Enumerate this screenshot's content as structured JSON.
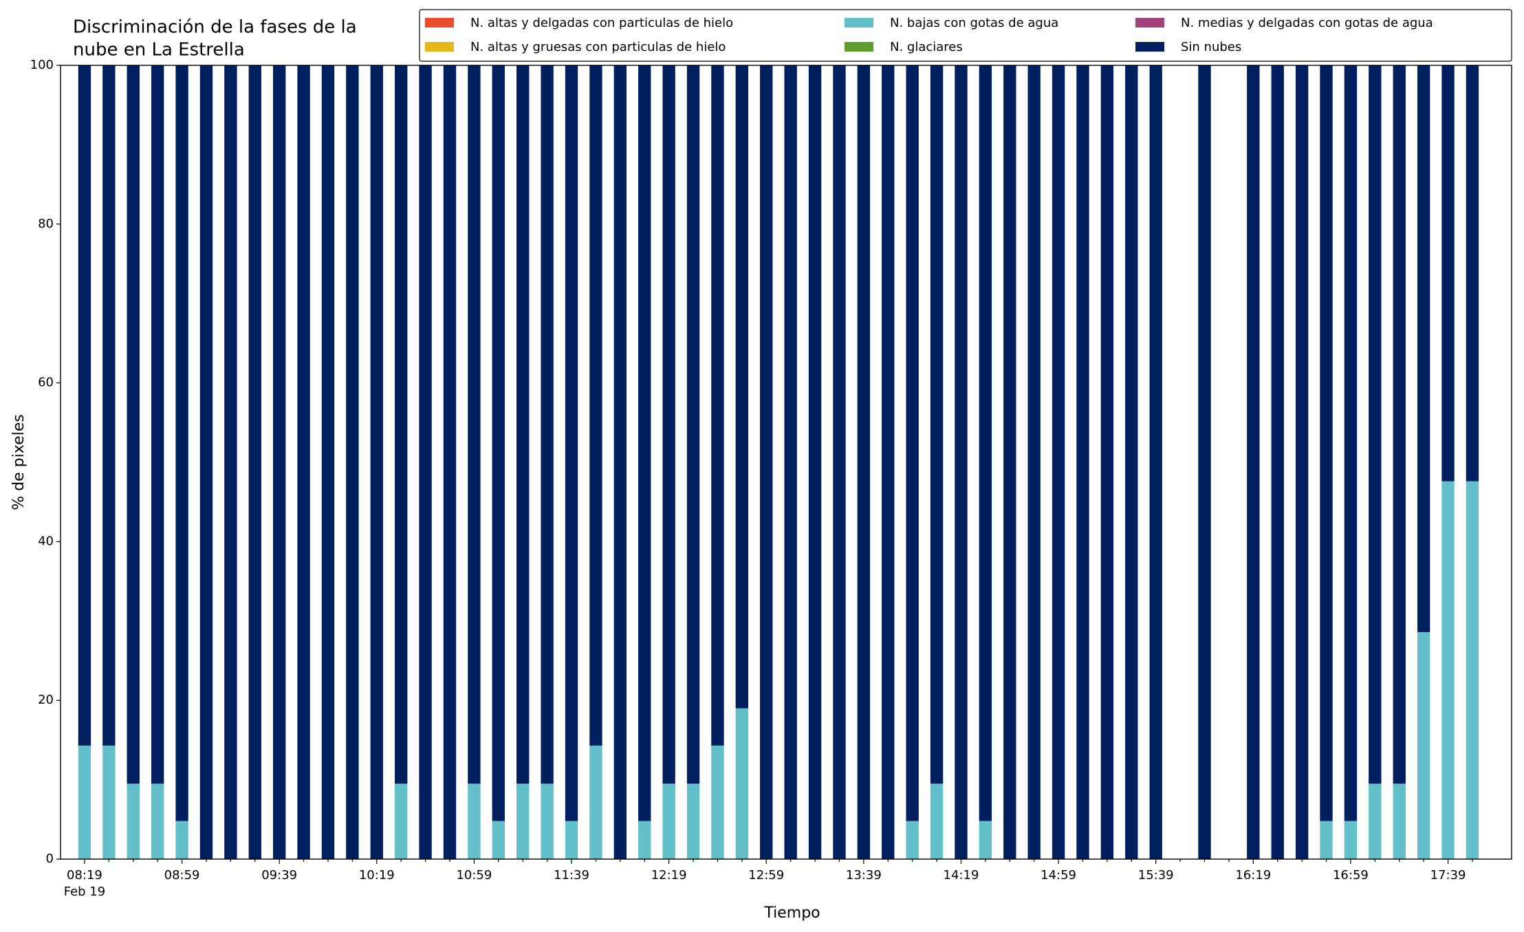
{
  "chart_data": {
    "type": "stacked_bar",
    "title_lines": [
      "Discriminación de la fases de la",
      "nube en La Estrella"
    ],
    "xlabel": "Tiempo",
    "ylabel": "% de pixeles",
    "date_label": "Feb 19",
    "categories": [
      "08:19",
      null,
      null,
      null,
      "08:59",
      null,
      null,
      null,
      "09:39",
      null,
      null,
      null,
      "10:19",
      null,
      null,
      null,
      "10:59",
      null,
      null,
      null,
      "11:39",
      null,
      null,
      null,
      "12:19",
      null,
      null,
      null,
      "12:59",
      null,
      null,
      null,
      "13:39",
      null,
      null,
      null,
      "14:19",
      null,
      null,
      null,
      "14:59",
      null,
      null,
      null,
      "15:39",
      null,
      null,
      null,
      "16:19",
      null,
      null,
      null,
      "16:59",
      null,
      null,
      null,
      "17:39",
      null
    ],
    "ylim": [
      0,
      100
    ],
    "yticks": [
      0,
      20,
      40,
      60,
      80,
      100
    ],
    "legend_position": "upper right",
    "legend_columns": 3,
    "series": [
      {
        "name": "N. altas y delgadas con particulas de hielo",
        "color": "#ea4b2c",
        "values": [
          0,
          0,
          0,
          0,
          0,
          0,
          0,
          0,
          0,
          0,
          0,
          0,
          0,
          0,
          0,
          0,
          0,
          0,
          0,
          0,
          0,
          0,
          0,
          0,
          0,
          0,
          0,
          0,
          0,
          0,
          0,
          0,
          0,
          0,
          0,
          0,
          0,
          0,
          0,
          0,
          0,
          0,
          0,
          0,
          0,
          null,
          0,
          null,
          0,
          0,
          0,
          0,
          0,
          0,
          0,
          0,
          0,
          0
        ]
      },
      {
        "name": "N. altas y gruesas con particulas de hielo",
        "color": "#e5b71a",
        "values": [
          0,
          0,
          0,
          0,
          0,
          0,
          0,
          0,
          0,
          0,
          0,
          0,
          0,
          0,
          0,
          0,
          0,
          0,
          0,
          0,
          0,
          0,
          0,
          0,
          0,
          0,
          0,
          0,
          0,
          0,
          0,
          0,
          0,
          0,
          0,
          0,
          0,
          0,
          0,
          0,
          0,
          0,
          0,
          0,
          0,
          null,
          0,
          null,
          0,
          0,
          0,
          0,
          0,
          0,
          0,
          0,
          0,
          0
        ]
      },
      {
        "name": "N. bajas con gotas de agua",
        "color": "#63bfca",
        "values": [
          14.3,
          14.3,
          9.5,
          9.5,
          4.8,
          0,
          0,
          0,
          0,
          0,
          0,
          0,
          0,
          9.5,
          0,
          0,
          9.5,
          4.8,
          9.5,
          9.5,
          4.8,
          14.3,
          0,
          4.8,
          9.5,
          9.5,
          14.3,
          19,
          0,
          0,
          0,
          0,
          0,
          0,
          4.8,
          9.5,
          0,
          4.8,
          0,
          0,
          0,
          0,
          0,
          0,
          0,
          null,
          0,
          null,
          0,
          0,
          0,
          4.8,
          4.8,
          9.5,
          9.5,
          28.6,
          47.6,
          47.6
        ]
      },
      {
        "name": "N. glaciares",
        "color": "#5e9e2e",
        "values": [
          0,
          0,
          0,
          0,
          0,
          0,
          0,
          0,
          0,
          0,
          0,
          0,
          0,
          0,
          0,
          0,
          0,
          0,
          0,
          0,
          0,
          0,
          0,
          0,
          0,
          0,
          0,
          0,
          0,
          0,
          0,
          0,
          0,
          0,
          0,
          0,
          0,
          0,
          0,
          0,
          0,
          0,
          0,
          0,
          0,
          null,
          0,
          null,
          0,
          0,
          0,
          0,
          0,
          0,
          0,
          0,
          0,
          0
        ]
      },
      {
        "name": "N. medias y delgadas con gotas de agua",
        "color": "#a1437a",
        "values": [
          0,
          0,
          0,
          0,
          0,
          0,
          0,
          0,
          0,
          0,
          0,
          0,
          0,
          0,
          0,
          0,
          0,
          0,
          0,
          0,
          0,
          0,
          0,
          0,
          0,
          0,
          0,
          0,
          0,
          0,
          0,
          0,
          0,
          0,
          0,
          0,
          0,
          0,
          0,
          0,
          0,
          0,
          0,
          0,
          0,
          null,
          0,
          null,
          0,
          0,
          0,
          0,
          0,
          0,
          0,
          0,
          0,
          0
        ]
      },
      {
        "name": "Sin nubes",
        "color": "#001f5f",
        "values": [
          85.7,
          85.7,
          90.5,
          90.5,
          95.2,
          100,
          100,
          100,
          100,
          100,
          100,
          100,
          100,
          90.5,
          100,
          100,
          90.5,
          95.2,
          90.5,
          90.5,
          95.2,
          85.7,
          100,
          95.2,
          90.5,
          90.5,
          85.7,
          81,
          100,
          100,
          100,
          100,
          100,
          100,
          95.2,
          90.5,
          100,
          95.2,
          100,
          100,
          100,
          100,
          100,
          100,
          100,
          null,
          100,
          null,
          100,
          100,
          100,
          95.2,
          95.2,
          90.5,
          90.5,
          71.4,
          52.4,
          52.4
        ]
      }
    ]
  }
}
